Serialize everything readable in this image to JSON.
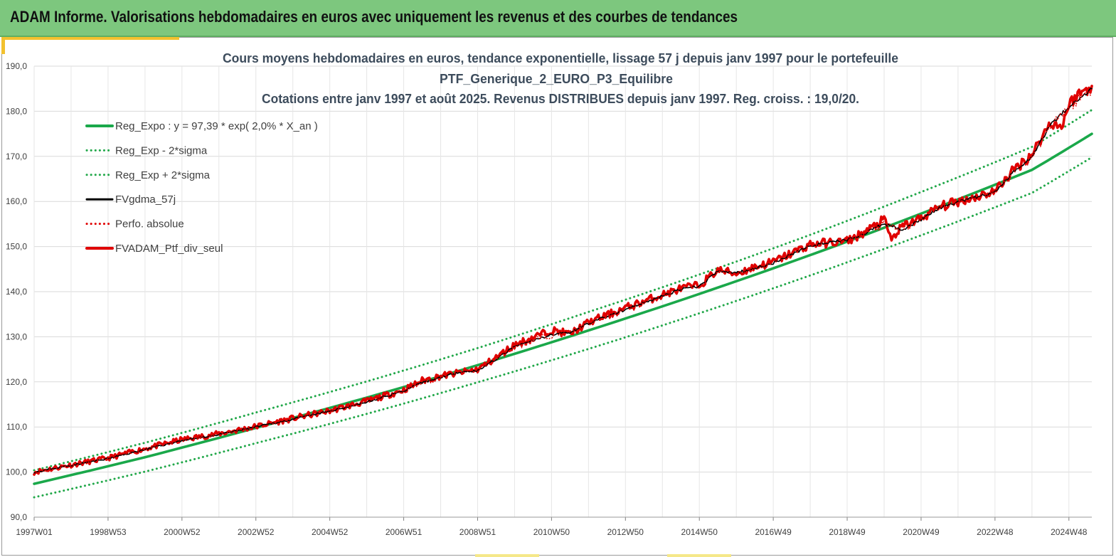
{
  "banner": {
    "title": "ADAM Informe. Valorisations hebdomadaires en euros avec uniquement les revenus et des courbes de tendances"
  },
  "colors": {
    "banner_bg": "#7dc77e",
    "reg_green": "#1aa84a",
    "dotted_green": "#22a84a",
    "red_series": "#e00000",
    "black_series": "#000000",
    "grid": "#d9d9d9"
  },
  "chart_data": {
    "type": "line",
    "title_lines": [
      "Cours moyens hebdomadaires  en euros, tendance exponentielle, lissage 57 j depuis janv 1997 pour le portefeuille",
      "PTF_Generique_2_EURO_P3_Equilibre",
      "Cotations  entre janv 1997 et août  2025. Revenus DISTRIBUES depuis janv 1997. Reg. croiss. : 19,0/20."
    ],
    "xlabel": "",
    "ylabel": "",
    "x_unit": "year",
    "xlim": [
      1997.0,
      2025.62
    ],
    "ylim": [
      90,
      190
    ],
    "y_ticks": [
      "90,0",
      "100,0",
      "110,0",
      "120,0",
      "130,0",
      "140,0",
      "150,0",
      "160,0",
      "170,0",
      "180,0",
      "190,0"
    ],
    "x_ticks": [
      {
        "label": "1997W01",
        "x": 1997.0
      },
      {
        "label": "1998W53",
        "x": 1999.0
      },
      {
        "label": "2000W52",
        "x": 2001.0
      },
      {
        "label": "2002W52",
        "x": 2003.0
      },
      {
        "label": "2004W52",
        "x": 2005.0
      },
      {
        "label": "2006W51",
        "x": 2007.0
      },
      {
        "label": "2008W51",
        "x": 2009.0
      },
      {
        "label": "2010W50",
        "x": 2011.0
      },
      {
        "label": "2012W50",
        "x": 2013.0
      },
      {
        "label": "2014W50",
        "x": 2015.0
      },
      {
        "label": "2016W49",
        "x": 2017.0
      },
      {
        "label": "2018W49",
        "x": 2019.0
      },
      {
        "label": "2020W49",
        "x": 2021.0
      },
      {
        "label": "2022W48",
        "x": 2023.0
      },
      {
        "label": "2024W48",
        "x": 2025.0
      }
    ],
    "legend_position": "top-left",
    "grid": true,
    "series": [
      {
        "name": "Reg_Expo : y = 97,39 * exp( 2,0% *  X_an )",
        "style": "solid-thick",
        "color": "#1aa84a",
        "x": [
          1997.0,
          2000.0,
          2003.0,
          2006.0,
          2009.0,
          2012.0,
          2015.0,
          2018.0,
          2021.0,
          2024.0,
          2025.62
        ],
        "y": [
          97.4,
          103.3,
          109.8,
          116.5,
          123.7,
          131.4,
          139.5,
          148.1,
          157.3,
          167.0,
          175.0
        ]
      },
      {
        "name": "Reg_Exp - 2*sigma",
        "style": "dotted",
        "color": "#22a84a",
        "x": [
          1997.0,
          2000.0,
          2003.0,
          2006.0,
          2009.0,
          2012.0,
          2015.0,
          2018.0,
          2021.0,
          2024.0,
          2025.62
        ],
        "y": [
          94.4,
          100.1,
          106.4,
          112.9,
          119.9,
          127.3,
          135.2,
          143.6,
          152.5,
          161.9,
          169.8
        ]
      },
      {
        "name": "Reg_Exp + 2*sigma",
        "style": "dotted",
        "color": "#22a84a",
        "x": [
          1997.0,
          2000.0,
          2003.0,
          2006.0,
          2009.0,
          2012.0,
          2015.0,
          2018.0,
          2021.0,
          2024.0,
          2025.62
        ],
        "y": [
          100.4,
          106.5,
          113.2,
          120.1,
          127.5,
          135.5,
          143.8,
          152.6,
          162.1,
          172.1,
          180.3
        ]
      },
      {
        "name": "FVgdma_57j",
        "style": "solid",
        "color": "#000000",
        "x": [
          1997.0,
          1998.0,
          1999.0,
          2000.0,
          2001.0,
          2002.0,
          2003.0,
          2004.0,
          2005.0,
          2006.0,
          2007.0,
          2007.5,
          2008.0,
          2008.5,
          2009.0,
          2009.5,
          2010.0,
          2011.0,
          2011.5,
          2012.0,
          2013.0,
          2014.0,
          2014.5,
          2015.0,
          2015.5,
          2016.0,
          2016.5,
          2017.0,
          2018.0,
          2019.0,
          2019.5,
          2020.0,
          2020.5,
          2021.0,
          2021.5,
          2022.0,
          2022.5,
          2023.0,
          2023.5,
          2024.0,
          2024.5,
          2025.0,
          2025.62
        ],
        "y": [
          100.0,
          101.5,
          103.0,
          105.0,
          107.0,
          108.3,
          110.0,
          111.7,
          113.5,
          115.5,
          118.0,
          119.8,
          121.0,
          122.2,
          122.5,
          125.0,
          127.8,
          130.5,
          131.0,
          133.0,
          136.0,
          139.0,
          140.5,
          141.2,
          144.5,
          144.2,
          145.2,
          146.3,
          150.2,
          151.5,
          153.0,
          155.0,
          153.8,
          156.0,
          158.5,
          159.8,
          161.0,
          162.0,
          166.5,
          170.0,
          177.0,
          181.0,
          185.0
        ]
      },
      {
        "name": "Perfo. absolue",
        "style": "dotted",
        "color": "#e00000",
        "x": [
          1997.0,
          1998.0,
          1999.0,
          2000.0,
          2001.0,
          2002.0,
          2003.0,
          2004.0,
          2005.0,
          2006.0,
          2007.0,
          2007.5,
          2008.0,
          2008.5,
          2009.0,
          2009.5,
          2010.0,
          2011.0,
          2011.5,
          2012.0,
          2013.0,
          2014.0,
          2014.5,
          2015.0,
          2015.5,
          2016.0,
          2016.5,
          2017.0,
          2018.0,
          2019.0,
          2019.5,
          2020.0,
          2020.5,
          2021.0,
          2021.5,
          2022.0,
          2022.5,
          2023.0,
          2023.5,
          2024.0,
          2024.5,
          2025.0,
          2025.62
        ],
        "y": [
          100.0,
          101.5,
          103.0,
          105.0,
          107.0,
          108.3,
          110.0,
          111.7,
          113.5,
          115.5,
          118.0,
          119.8,
          121.0,
          122.2,
          122.5,
          125.0,
          127.8,
          130.5,
          131.0,
          133.0,
          136.0,
          139.0,
          140.5,
          141.2,
          144.5,
          144.2,
          145.2,
          146.3,
          150.2,
          151.5,
          153.0,
          155.0,
          153.8,
          156.0,
          158.5,
          159.8,
          161.0,
          162.0,
          166.5,
          170.0,
          177.0,
          181.0,
          185.0
        ]
      },
      {
        "name": "FVADAM_Ptf_div_seul",
        "style": "solid-thick",
        "color": "#e00000",
        "x": [
          1997.0,
          1998.0,
          1999.0,
          2000.0,
          2001.0,
          2002.0,
          2003.0,
          2004.0,
          2005.0,
          2006.0,
          2007.0,
          2007.5,
          2008.0,
          2008.5,
          2009.0,
          2009.5,
          2010.0,
          2011.0,
          2011.5,
          2012.0,
          2013.0,
          2014.0,
          2014.5,
          2015.0,
          2015.5,
          2016.0,
          2016.5,
          2017.0,
          2018.0,
          2019.0,
          2019.5,
          2020.0,
          2020.2,
          2020.5,
          2021.0,
          2021.5,
          2022.0,
          2022.5,
          2023.0,
          2023.5,
          2024.0,
          2024.5,
          2024.8,
          2025.0,
          2025.2,
          2025.62
        ],
        "y": [
          100.0,
          101.6,
          103.1,
          105.2,
          107.2,
          108.5,
          110.1,
          111.9,
          113.6,
          115.7,
          118.2,
          120.3,
          121.3,
          122.0,
          122.8,
          125.4,
          128.2,
          131.5,
          130.6,
          133.2,
          136.4,
          139.3,
          140.7,
          141.4,
          144.8,
          144.0,
          145.5,
          146.6,
          150.5,
          151.2,
          153.3,
          156.0,
          151.5,
          154.5,
          156.3,
          158.8,
          160.0,
          161.1,
          162.3,
          167.0,
          170.5,
          177.5,
          176.5,
          181.5,
          183.5,
          185.6
        ]
      }
    ]
  }
}
